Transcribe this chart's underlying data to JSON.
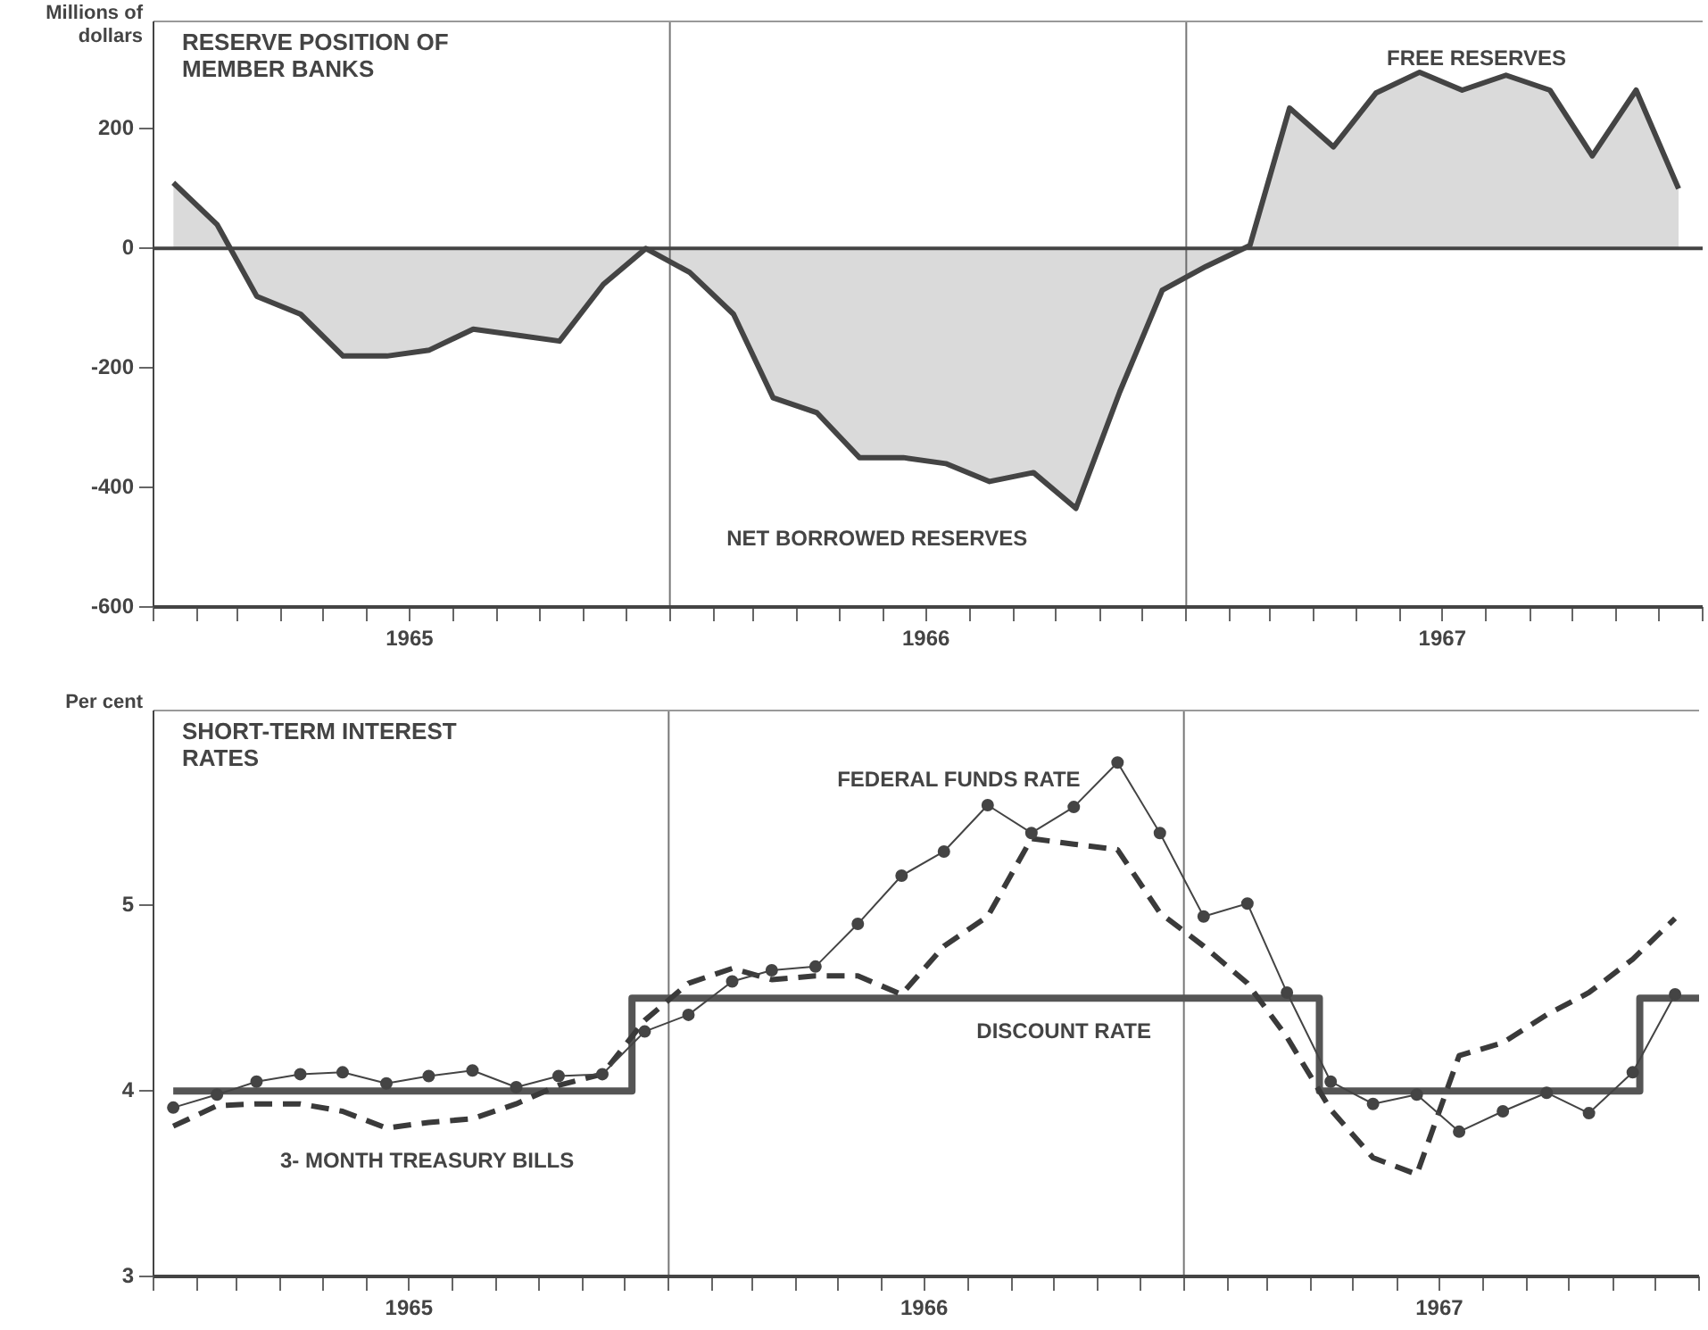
{
  "chart_data": [
    {
      "type": "area",
      "title": "RESERVE POSITION OF MEMBER BANKS",
      "ylabel": "Millions of dollars",
      "x": [
        "1965-01-15",
        "1965-02-15",
        "1965-03-15",
        "1965-04-15",
        "1965-05-15",
        "1965-06-15",
        "1965-07-15",
        "1965-08-15",
        "1965-09-15",
        "1965-10-15",
        "1965-11-15",
        "1965-12-15",
        "1966-01-15",
        "1966-02-15",
        "1966-03-15",
        "1966-04-15",
        "1966-05-15",
        "1966-06-15",
        "1966-07-15",
        "1966-08-15",
        "1966-09-15",
        "1966-10-15",
        "1966-11-15",
        "1966-12-15",
        "1967-01-15",
        "1967-02-15",
        "1967-03-15",
        "1967-04-15",
        "1967-05-15",
        "1967-06-15",
        "1967-07-15",
        "1967-08-15",
        "1967-09-15",
        "1967-10-15",
        "1967-11-15",
        "1967-12-15"
      ],
      "series": [
        {
          "color": "#444444",
          "values": [
            110,
            40,
            -80,
            -110,
            -180,
            -180,
            -170,
            -135,
            -145,
            -155,
            -60,
            0,
            -40,
            -110,
            -250,
            -275,
            -350,
            -350,
            -360,
            -390,
            -375,
            -435,
            -240,
            -70,
            -30,
            5,
            235,
            170,
            260,
            295,
            265,
            290,
            265,
            155,
            265,
            100
          ]
        }
      ],
      "xlim": [
        "1965-01-01",
        "1968-01-01"
      ],
      "xticks": [
        {
          "value": "1965-01-01",
          "label": null
        },
        {
          "value": "1965-02-01",
          "label": null
        },
        {
          "value": "1965-03-01",
          "label": null
        },
        {
          "value": "1965-04-01",
          "label": null
        },
        {
          "value": "1965-05-01",
          "label": null
        },
        {
          "value": "1965-06-01",
          "label": null
        },
        {
          "value": "1965-07-01",
          "label": "1965"
        },
        {
          "value": "1965-08-01",
          "label": null
        },
        {
          "value": "1965-09-01",
          "label": null
        },
        {
          "value": "1965-10-01",
          "label": null
        },
        {
          "value": "1965-11-01",
          "label": null
        },
        {
          "value": "1965-12-01",
          "label": null
        },
        {
          "value": "1966-01-01",
          "label": null
        },
        {
          "value": "1966-02-01",
          "label": null
        },
        {
          "value": "1966-03-01",
          "label": null
        },
        {
          "value": "1966-04-01",
          "label": null
        },
        {
          "value": "1966-05-01",
          "label": null
        },
        {
          "value": "1966-06-01",
          "label": null
        },
        {
          "value": "1966-07-01",
          "label": "1966"
        },
        {
          "value": "1966-08-01",
          "label": null
        },
        {
          "value": "1966-09-01",
          "label": null
        },
        {
          "value": "1966-10-01",
          "label": null
        },
        {
          "value": "1966-11-01",
          "label": null
        },
        {
          "value": "1966-12-01",
          "label": null
        },
        {
          "value": "1967-01-01",
          "label": null
        },
        {
          "value": "1967-02-01",
          "label": null
        },
        {
          "value": "1967-03-01",
          "label": null
        },
        {
          "value": "1967-04-01",
          "label": null
        },
        {
          "value": "1967-05-01",
          "label": null
        },
        {
          "value": "1967-06-01",
          "label": null
        },
        {
          "value": "1967-07-01",
          "label": "1967"
        },
        {
          "value": "1967-08-01",
          "label": null
        },
        {
          "value": "1967-09-01",
          "label": null
        },
        {
          "value": "1967-10-01",
          "label": null
        },
        {
          "value": "1967-11-01",
          "label": null
        },
        {
          "value": "1967-12-01",
          "label": null
        },
        {
          "value": "1968-01-01",
          "label": null
        }
      ],
      "ylim": [
        -600,
        380
      ],
      "yticks": [
        -600,
        -400,
        -200,
        0,
        200
      ],
      "ref_lines": [
        {
          "axis": "x",
          "value": "1966-01-01",
          "color": "#777777"
        },
        {
          "axis": "x",
          "value": "1967-01-01",
          "color": "#777777"
        },
        {
          "axis": "y",
          "value": 0,
          "color": "#444444"
        }
      ],
      "annotations": [
        "FREE RESERVES",
        "NET BORROWED RESERVES"
      ]
    },
    {
      "type": "line",
      "title": "SHORT-TERM INTEREST RATES",
      "ylabel": "Per cent",
      "x": [
        "1965-01-15",
        "1965-02-15",
        "1965-03-15",
        "1965-04-15",
        "1965-05-15",
        "1965-06-15",
        "1965-07-15",
        "1965-08-15",
        "1965-09-15",
        "1965-10-15",
        "1965-11-15",
        "1965-12-15",
        "1966-01-15",
        "1966-02-15",
        "1966-03-15",
        "1966-04-15",
        "1966-05-15",
        "1966-06-15",
        "1966-07-15",
        "1966-08-15",
        "1966-09-15",
        "1966-10-15",
        "1966-11-15",
        "1966-12-15",
        "1967-01-15",
        "1967-02-15",
        "1967-03-15",
        "1967-04-15",
        "1967-05-15",
        "1967-06-15",
        "1967-07-15",
        "1967-08-15",
        "1967-09-15",
        "1967-10-15",
        "1967-11-15",
        "1967-12-15"
      ],
      "series": [
        {
          "name": "FEDERAL FUNDS RATE",
          "color": "#444444",
          "marker": "circle",
          "values": [
            3.91,
            3.98,
            4.05,
            4.09,
            4.1,
            4.04,
            4.08,
            4.11,
            4.02,
            4.08,
            4.09,
            4.32,
            4.41,
            4.59,
            4.65,
            4.67,
            4.9,
            5.16,
            5.29,
            5.54,
            5.39,
            5.53,
            5.77,
            5.39,
            4.94,
            5.01,
            4.53,
            4.05,
            3.93,
            3.98,
            3.78,
            3.89,
            3.99,
            3.88,
            4.1,
            4.52
          ]
        },
        {
          "name": "3- MONTH TREASURY BILLS",
          "color": "#3a3a3a",
          "line_style": "dashed",
          "values": [
            3.81,
            3.92,
            3.93,
            3.93,
            3.89,
            3.8,
            3.83,
            3.85,
            3.93,
            4.03,
            4.09,
            4.38,
            4.58,
            4.66,
            4.6,
            4.62,
            4.62,
            4.52,
            4.78,
            4.94,
            5.36,
            5.33,
            5.3,
            4.96,
            4.78,
            4.58,
            4.29,
            3.9,
            3.64,
            3.55,
            4.19,
            4.26,
            4.41,
            4.53,
            4.71,
            4.93
          ]
        },
        {
          "name": "DISCOUNT RATE",
          "type": "step",
          "color": "#555555",
          "x": [
            "1965-01-15",
            "1965-12-06",
            "1967-04-07",
            "1967-11-20",
            "1968-01-01"
          ],
          "values": [
            4,
            4.5,
            4,
            4.5,
            4.5
          ]
        }
      ],
      "xlim": [
        "1965-01-01",
        "1968-01-01"
      ],
      "xticks": [
        {
          "value": "1965-01-01",
          "label": null
        },
        {
          "value": "1965-02-01",
          "label": null
        },
        {
          "value": "1965-03-01",
          "label": null
        },
        {
          "value": "1965-04-01",
          "label": null
        },
        {
          "value": "1965-05-01",
          "label": null
        },
        {
          "value": "1965-06-01",
          "label": null
        },
        {
          "value": "1965-07-01",
          "label": "1965"
        },
        {
          "value": "1965-08-01",
          "label": null
        },
        {
          "value": "1965-09-01",
          "label": null
        },
        {
          "value": "1965-10-01",
          "label": null
        },
        {
          "value": "1965-11-01",
          "label": null
        },
        {
          "value": "1965-12-01",
          "label": null
        },
        {
          "value": "1966-01-01",
          "label": null
        },
        {
          "value": "1966-02-01",
          "label": null
        },
        {
          "value": "1966-03-01",
          "label": null
        },
        {
          "value": "1966-04-01",
          "label": null
        },
        {
          "value": "1966-05-01",
          "label": null
        },
        {
          "value": "1966-06-01",
          "label": null
        },
        {
          "value": "1966-07-01",
          "label": "1966"
        },
        {
          "value": "1966-08-01",
          "label": null
        },
        {
          "value": "1966-09-01",
          "label": null
        },
        {
          "value": "1966-10-01",
          "label": null
        },
        {
          "value": "1966-11-01",
          "label": null
        },
        {
          "value": "1966-12-01",
          "label": null
        },
        {
          "value": "1967-01-01",
          "label": null
        },
        {
          "value": "1967-02-01",
          "label": null
        },
        {
          "value": "1967-03-01",
          "label": null
        },
        {
          "value": "1967-04-01",
          "label": null
        },
        {
          "value": "1967-05-01",
          "label": null
        },
        {
          "value": "1967-06-01",
          "label": null
        },
        {
          "value": "1967-07-01",
          "label": "1967"
        },
        {
          "value": "1967-08-01",
          "label": null
        },
        {
          "value": "1967-09-01",
          "label": null
        },
        {
          "value": "1967-10-01",
          "label": null
        },
        {
          "value": "1967-11-01",
          "label": null
        },
        {
          "value": "1967-12-01",
          "label": null
        },
        {
          "value": "1968-01-01",
          "label": null
        }
      ],
      "ylim": [
        3,
        6.05
      ],
      "yticks": [
        3,
        4,
        5
      ],
      "ref_lines": [
        {
          "axis": "x",
          "value": "1966-01-01",
          "color": "#777777"
        },
        {
          "axis": "x",
          "value": "1967-01-01",
          "color": "#777777"
        }
      ]
    }
  ]
}
